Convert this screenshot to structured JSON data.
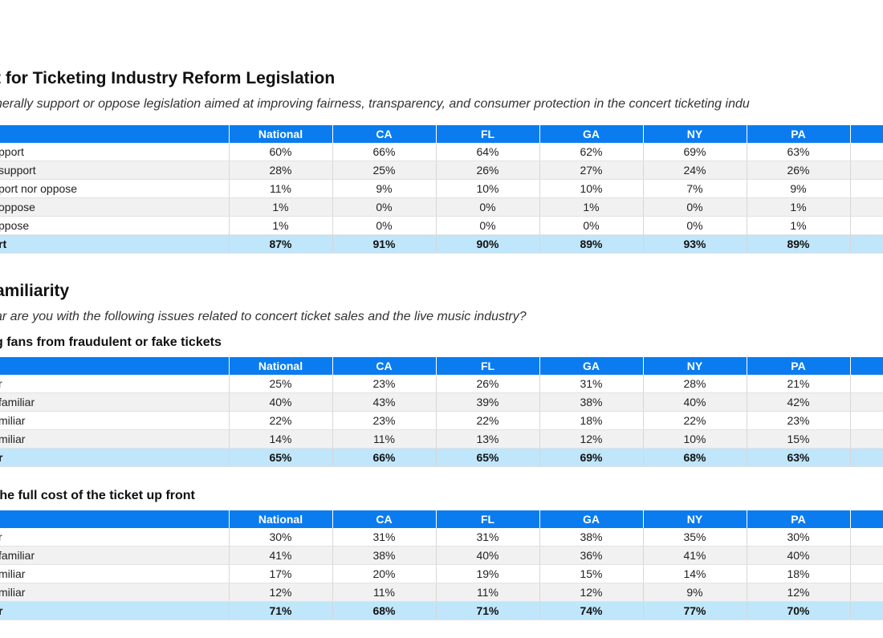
{
  "columns": [
    "National",
    "CA",
    "FL",
    "GA",
    "NY",
    "PA",
    ""
  ],
  "section1": {
    "title": "t for Ticketing Industry Reform Legislation",
    "question": "nerally support or oppose legislation aimed at improving fairness, transparency, and consumer protection in the concert ticketing indu",
    "rows": [
      {
        "label": "pport",
        "values": [
          "60%",
          "66%",
          "64%",
          "62%",
          "69%",
          "63%",
          ""
        ]
      },
      {
        "label": "support",
        "values": [
          "28%",
          "25%",
          "26%",
          "27%",
          "24%",
          "26%",
          ""
        ]
      },
      {
        "label": "port nor oppose",
        "values": [
          "11%",
          "9%",
          "10%",
          "10%",
          "7%",
          "9%",
          ""
        ]
      },
      {
        "label": "oppose",
        "values": [
          "1%",
          "0%",
          "0%",
          "1%",
          "0%",
          "1%",
          ""
        ]
      },
      {
        "label": "ppose",
        "values": [
          "1%",
          "0%",
          "0%",
          "0%",
          "0%",
          "1%",
          ""
        ]
      },
      {
        "label": "rt",
        "values": [
          "87%",
          "91%",
          "90%",
          "89%",
          "93%",
          "89%",
          ""
        ],
        "total": true
      }
    ]
  },
  "section2": {
    "title": "amiliarity",
    "question": "ar are you with the following issues related to concert ticket sales and the live music industry?",
    "table_a": {
      "subhead": "g fans from fraudulent or fake tickets",
      "rows": [
        {
          "label": "r",
          "values": [
            "25%",
            "23%",
            "26%",
            "31%",
            "28%",
            "21%",
            ""
          ]
        },
        {
          "label": "familiar",
          "values": [
            "40%",
            "43%",
            "39%",
            "38%",
            "40%",
            "42%",
            ""
          ]
        },
        {
          "label": "miliar",
          "values": [
            "22%",
            "23%",
            "22%",
            "18%",
            "22%",
            "23%",
            ""
          ]
        },
        {
          "label": "miliar",
          "values": [
            "14%",
            "11%",
            "13%",
            "12%",
            "10%",
            "15%",
            ""
          ]
        },
        {
          "label": "r",
          "values": [
            "65%",
            "66%",
            "65%",
            "69%",
            "68%",
            "63%",
            ""
          ],
          "total": true
        }
      ]
    },
    "table_b": {
      "subhead": "the full cost of the ticket up front",
      "rows": [
        {
          "label": "r",
          "values": [
            "30%",
            "31%",
            "31%",
            "38%",
            "35%",
            "30%",
            ""
          ]
        },
        {
          "label": "familiar",
          "values": [
            "41%",
            "38%",
            "40%",
            "36%",
            "41%",
            "40%",
            ""
          ]
        },
        {
          "label": "miliar",
          "values": [
            "17%",
            "20%",
            "19%",
            "15%",
            "14%",
            "18%",
            ""
          ]
        },
        {
          "label": "miliar",
          "values": [
            "12%",
            "11%",
            "11%",
            "12%",
            "9%",
            "12%",
            ""
          ]
        },
        {
          "label": "r",
          "values": [
            "71%",
            "68%",
            "71%",
            "74%",
            "77%",
            "70%",
            ""
          ],
          "total": true
        }
      ]
    }
  },
  "colors": {
    "header_bg": "#0a7cf0",
    "total_bg": "#bfe6fb",
    "alt_row_bg": "#f1f1f1"
  }
}
